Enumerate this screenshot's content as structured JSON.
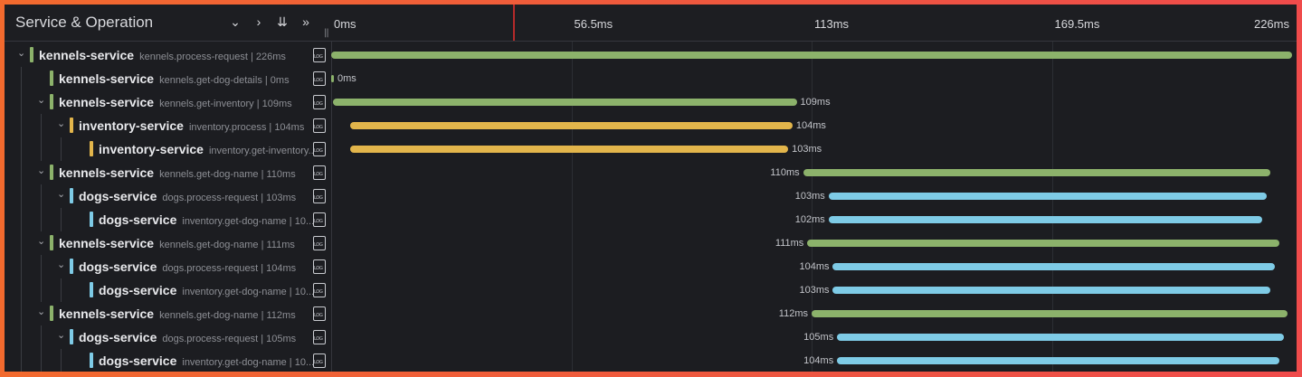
{
  "header": {
    "title": "Service & Operation",
    "buttons": [
      {
        "name": "collapse-one-icon",
        "glyph": "⌄"
      },
      {
        "name": "expand-one-icon",
        "glyph": "›"
      },
      {
        "name": "collapse-all-icon",
        "glyph": "⇊"
      },
      {
        "name": "expand-all-icon",
        "glyph": "»"
      }
    ]
  },
  "timeline": {
    "duration_ms": 226,
    "ticks": [
      {
        "label": "0ms",
        "value": 0
      },
      {
        "label": "56.5ms",
        "value": 56.5
      },
      {
        "label": "113ms",
        "value": 113
      },
      {
        "label": "169.5ms",
        "value": 169.5
      },
      {
        "label": "226ms",
        "value": 226
      }
    ]
  },
  "colors": {
    "kennels-service": "#8cb26b",
    "inventory-service": "#e2b54b",
    "dogs-service": "#7ecbe6"
  },
  "spans": [
    {
      "service": "kennels-service",
      "operation": "kennels.process-request | 226ms",
      "depth": 0,
      "collapsible": true,
      "start": 0,
      "duration": 226,
      "label": ""
    },
    {
      "service": "kennels-service",
      "operation": "kennels.get-dog-details | 0ms",
      "depth": 1,
      "collapsible": false,
      "start": 0,
      "duration": 0,
      "label": "0ms"
    },
    {
      "service": "kennels-service",
      "operation": "kennels.get-inventory | 109ms",
      "depth": 1,
      "collapsible": true,
      "start": 0.5,
      "duration": 109,
      "label": "109ms"
    },
    {
      "service": "inventory-service",
      "operation": "inventory.process | 104ms",
      "depth": 2,
      "collapsible": true,
      "start": 4.5,
      "duration": 104,
      "label": "104ms"
    },
    {
      "service": "inventory-service",
      "operation": "inventory.get-inventory...",
      "depth": 3,
      "collapsible": false,
      "start": 4.5,
      "duration": 103,
      "label": "103ms"
    },
    {
      "service": "kennels-service",
      "operation": "kennels.get-dog-name | 110ms",
      "depth": 1,
      "collapsible": true,
      "start": 111,
      "duration": 110,
      "label": "110ms"
    },
    {
      "service": "dogs-service",
      "operation": "dogs.process-request | 103ms",
      "depth": 2,
      "collapsible": true,
      "start": 117,
      "duration": 103,
      "label": "103ms"
    },
    {
      "service": "dogs-service",
      "operation": "inventory.get-dog-name | 10...",
      "depth": 3,
      "collapsible": false,
      "start": 117,
      "duration": 102,
      "label": "102ms"
    },
    {
      "service": "kennels-service",
      "operation": "kennels.get-dog-name | 111ms",
      "depth": 1,
      "collapsible": true,
      "start": 112,
      "duration": 111,
      "label": "111ms"
    },
    {
      "service": "dogs-service",
      "operation": "dogs.process-request | 104ms",
      "depth": 2,
      "collapsible": true,
      "start": 118,
      "duration": 104,
      "label": "104ms"
    },
    {
      "service": "dogs-service",
      "operation": "inventory.get-dog-name | 10...",
      "depth": 3,
      "collapsible": false,
      "start": 118,
      "duration": 103,
      "label": "103ms"
    },
    {
      "service": "kennels-service",
      "operation": "kennels.get-dog-name | 112ms",
      "depth": 1,
      "collapsible": true,
      "start": 113,
      "duration": 112,
      "label": "112ms"
    },
    {
      "service": "dogs-service",
      "operation": "dogs.process-request | 105ms",
      "depth": 2,
      "collapsible": true,
      "start": 119,
      "duration": 105,
      "label": "105ms"
    },
    {
      "service": "dogs-service",
      "operation": "inventory.get-dog-name | 10...",
      "depth": 3,
      "collapsible": false,
      "start": 119,
      "duration": 104,
      "label": "104ms"
    }
  ]
}
